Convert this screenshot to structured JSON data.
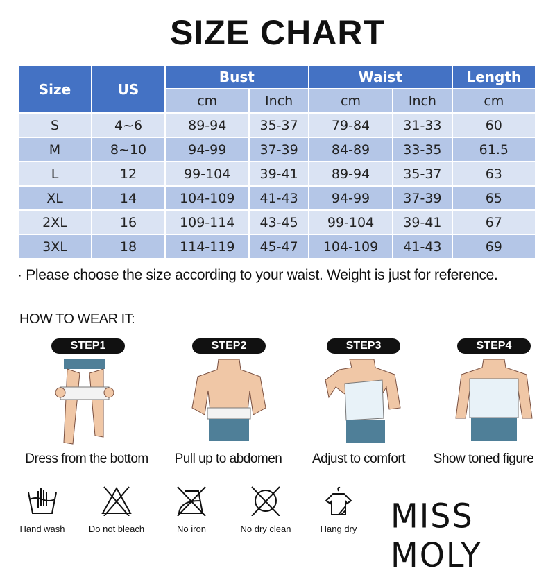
{
  "title": "SIZE CHART",
  "table": {
    "headers": {
      "size": "Size",
      "us": "US",
      "bust": "Bust",
      "waist": "Waist",
      "length": "Length"
    },
    "units": [
      "cm",
      "Inch",
      "cm",
      "Inch",
      "cm"
    ],
    "rows": [
      [
        "S",
        "4~6",
        "89-94",
        "35-37",
        "79-84",
        "31-33",
        "60"
      ],
      [
        "M",
        "8~10",
        "94-99",
        "37-39",
        "84-89",
        "33-35",
        "61.5"
      ],
      [
        "L",
        "12",
        "99-104",
        "39-41",
        "89-94",
        "35-37",
        "63"
      ],
      [
        "XL",
        "14",
        "104-109",
        "41-43",
        "94-99",
        "37-39",
        "65"
      ],
      [
        "2XL",
        "16",
        "109-114",
        "43-45",
        "99-104",
        "39-41",
        "67"
      ],
      [
        "3XL",
        "18",
        "114-119",
        "45-47",
        "104-109",
        "41-43",
        "69"
      ]
    ]
  },
  "note": "· Please choose the size according to your waist. Weight is just for reference.",
  "how_to": "HOW TO WEAR IT:",
  "steps": [
    {
      "label": "STEP1",
      "caption": "Dress from the bottom"
    },
    {
      "label": "STEP2",
      "caption": "Pull up to abdomen"
    },
    {
      "label": "STEP3",
      "caption": "Adjust to comfort"
    },
    {
      "label": "STEP4",
      "caption": "Show toned figure"
    }
  ],
  "care": [
    {
      "icon": "hand-wash-icon",
      "label": "Hand wash"
    },
    {
      "icon": "do-not-bleach-icon",
      "label": "Do not bleach"
    },
    {
      "icon": "no-iron-icon",
      "label": "No iron"
    },
    {
      "icon": "no-dry-clean-icon",
      "label": "No dry clean"
    },
    {
      "icon": "hang-dry-icon",
      "label": "Hang dry"
    }
  ],
  "brand": "MISS MOLY",
  "colors": {
    "header": "#4472c4",
    "subheader": "#b4c6e7",
    "row_light": "#dae3f3",
    "row_dark": "#b4c6e7"
  }
}
